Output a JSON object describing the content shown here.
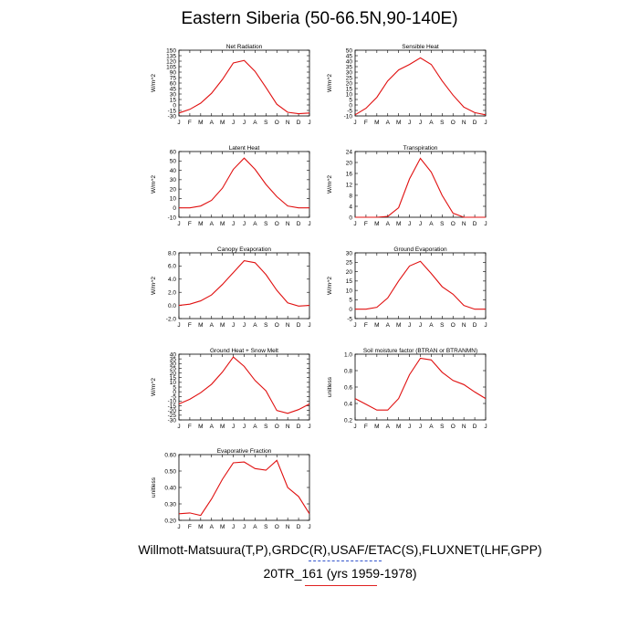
{
  "title": "Eastern Siberia (50-66.5N,90-140E)",
  "footer": {
    "line1": "Willmott-Matsuura(T,P),GRDC(R),USAF/ETAC(S),FLUXNET(LHF,GPP)",
    "line2": "20TR_161 (yrs 1959-1978)"
  },
  "colors": {
    "series": "#e01010",
    "axis": "#000000"
  },
  "months": [
    "J",
    "F",
    "M",
    "A",
    "M",
    "J",
    "J",
    "A",
    "S",
    "O",
    "N",
    "D",
    "J"
  ],
  "chart_data": [
    {
      "type": "line",
      "title": "Net Radiation",
      "ylabel": "W/m^2",
      "ylim": [
        -30,
        150
      ],
      "yticks": [
        "-30",
        "-15",
        "0",
        "15",
        "30",
        "45",
        "60",
        "75",
        "90",
        "105",
        "120",
        "135",
        "150"
      ],
      "values": [
        -22,
        -12,
        5,
        32,
        70,
        115,
        122,
        92,
        48,
        2,
        -20,
        -24,
        -22
      ]
    },
    {
      "type": "line",
      "title": "Sensible Heat",
      "ylabel": "W/m^2",
      "ylim": [
        -10,
        50
      ],
      "yticks": [
        "-10",
        "-5",
        "0",
        "5",
        "10",
        "15",
        "20",
        "25",
        "30",
        "35",
        "40",
        "45",
        "50"
      ],
      "values": [
        -9,
        -3,
        7,
        22,
        32,
        37,
        43,
        37,
        22,
        9,
        -2,
        -7,
        -9
      ]
    },
    {
      "type": "line",
      "title": "Latent Heat",
      "ylabel": "W/m^2",
      "ylim": [
        -10,
        60
      ],
      "yticks": [
        "-10",
        "0",
        "10",
        "20",
        "30",
        "40",
        "50",
        "60"
      ],
      "values": [
        0,
        0,
        2,
        8,
        21,
        41,
        53,
        41,
        25,
        12,
        2,
        0,
        0
      ]
    },
    {
      "type": "line",
      "title": "Transpiration",
      "ylabel": "W/m^2",
      "ylim": [
        0,
        24
      ],
      "yticks": [
        "0",
        "4",
        "8",
        "12",
        "16",
        "20",
        "24"
      ],
      "values": [
        0,
        0,
        0,
        0.3,
        3.5,
        14,
        21.5,
        16.5,
        8,
        1.5,
        0,
        0,
        0
      ]
    },
    {
      "type": "line",
      "title": "Canopy Evaporation",
      "ylabel": "W/m^2",
      "ylim": [
        -2,
        8
      ],
      "yticks": [
        "-2.0",
        "0.0",
        "2.0",
        "4.0",
        "6.0",
        "8.0"
      ],
      "values": [
        0,
        0.2,
        0.7,
        1.6,
        3.2,
        5,
        6.8,
        6.5,
        4.7,
        2.3,
        0.4,
        -0.1,
        0
      ]
    },
    {
      "type": "line",
      "title": "Ground Evaporation",
      "ylabel": "W/m^2",
      "ylim": [
        -5,
        30
      ],
      "yticks": [
        "-5",
        "0",
        "5",
        "10",
        "15",
        "20",
        "25",
        "30"
      ],
      "values": [
        0,
        0,
        1,
        6,
        15,
        23,
        25.5,
        19,
        12,
        8,
        2,
        0,
        0
      ]
    },
    {
      "type": "line",
      "title": "Ground Heat + Snow Melt",
      "ylabel": "W/m^2",
      "ylim": [
        -30,
        40
      ],
      "yticks": [
        "-30",
        "-25",
        "-20",
        "-15",
        "-10",
        "-5",
        "0",
        "5",
        "10",
        "15",
        "20",
        "25",
        "30",
        "35",
        "40"
      ],
      "values": [
        -13,
        -8,
        -1,
        8,
        21,
        37,
        27,
        12,
        1,
        -20,
        -23,
        -19,
        -13
      ]
    },
    {
      "type": "line",
      "title": "Soil moisture factor (BTRAN or BTRANMN)",
      "ylabel": "unitless",
      "ylim": [
        0.2,
        1.0
      ],
      "yticks": [
        "0.2",
        "0.4",
        "0.6",
        "0.8",
        "1.0"
      ],
      "values": [
        0.46,
        0.39,
        0.32,
        0.32,
        0.46,
        0.75,
        0.95,
        0.93,
        0.78,
        0.68,
        0.63,
        0.54,
        0.46
      ]
    },
    {
      "type": "line",
      "title": "Evaporative Fraction",
      "ylabel": "unitless",
      "ylim": [
        0.2,
        0.6
      ],
      "yticks": [
        "0.20",
        "0.30",
        "0.40",
        "0.50",
        "0.60"
      ],
      "values": [
        0.24,
        0.245,
        0.23,
        0.33,
        0.45,
        0.55,
        0.555,
        0.515,
        0.505,
        0.565,
        0.4,
        0.345,
        0.24
      ]
    }
  ]
}
